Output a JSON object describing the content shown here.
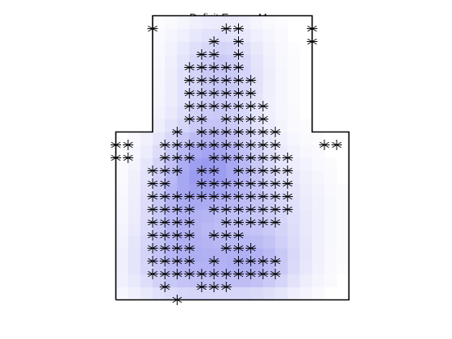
{
  "chart_data": {
    "type": "heatmap",
    "title": "Deficit Excess Map",
    "xlabel": "",
    "ylabel": "",
    "grid": false,
    "boundary": {
      "vertices": [
        [
          1,
          0
        ],
        [
          20,
          0
        ],
        [
          20,
          13
        ],
        [
          17,
          13
        ],
        [
          17,
          22
        ],
        [
          4,
          22
        ],
        [
          4,
          13
        ],
        [
          1,
          13
        ],
        [
          1,
          0
        ]
      ]
    },
    "markers": {
      "symbol": "asterisk",
      "rows": [
        {
          "y": 21,
          "x": [
            4,
            10,
            11,
            17
          ]
        },
        {
          "y": 20,
          "x": [
            9,
            11,
            17
          ]
        },
        {
          "y": 19,
          "x": [
            8,
            9,
            11
          ]
        },
        {
          "y": 18,
          "x": [
            7,
            8,
            9,
            10,
            11
          ]
        },
        {
          "y": 17,
          "x": [
            7,
            8,
            9,
            10,
            11,
            12
          ]
        },
        {
          "y": 16,
          "x": [
            7,
            8,
            9,
            10,
            11,
            12
          ]
        },
        {
          "y": 15,
          "x": [
            7,
            8,
            9,
            10,
            11,
            12,
            13
          ]
        },
        {
          "y": 14,
          "x": [
            7,
            8,
            10,
            11,
            12,
            13
          ]
        },
        {
          "y": 13,
          "x": [
            6,
            8,
            9,
            10,
            11,
            12,
            13,
            14
          ]
        },
        {
          "y": 12,
          "x": [
            1,
            2,
            5,
            6,
            7,
            8,
            9,
            10,
            11,
            12,
            13,
            14,
            18,
            19
          ]
        },
        {
          "y": 11,
          "x": [
            1,
            2,
            5,
            6,
            7,
            9,
            10,
            11,
            12,
            13,
            14,
            15
          ]
        },
        {
          "y": 10,
          "x": [
            4,
            5,
            6,
            8,
            9,
            11,
            12,
            13,
            14,
            15
          ]
        },
        {
          "y": 9,
          "x": [
            4,
            5,
            8,
            9,
            10,
            11,
            12,
            13,
            14,
            15
          ]
        },
        {
          "y": 8,
          "x": [
            4,
            5,
            6,
            7,
            8,
            9,
            10,
            11,
            12,
            13,
            14,
            15
          ]
        },
        {
          "y": 7,
          "x": [
            4,
            5,
            6,
            7,
            9,
            10,
            11,
            12,
            13,
            14,
            15
          ]
        },
        {
          "y": 6,
          "x": [
            4,
            5,
            6,
            7,
            10,
            11,
            12,
            13,
            14
          ]
        },
        {
          "y": 5,
          "x": [
            4,
            5,
            6,
            7,
            9,
            10,
            11
          ]
        },
        {
          "y": 4,
          "x": [
            4,
            5,
            6,
            7,
            10,
            11,
            12
          ]
        },
        {
          "y": 3,
          "x": [
            4,
            5,
            6,
            7,
            9,
            11,
            12,
            13,
            14
          ]
        },
        {
          "y": 2,
          "x": [
            4,
            5,
            6,
            7,
            8,
            9,
            10,
            11,
            12,
            13,
            14
          ]
        },
        {
          "y": 1,
          "x": [
            5,
            8,
            9,
            10
          ]
        },
        {
          "y": 0,
          "x": [
            6
          ]
        }
      ]
    },
    "intensity": {
      "color_low": "#ffffff",
      "color_high": "#9a9af0",
      "peaks": [
        {
          "x": 9.5,
          "y": 17.5,
          "sx": 2.6,
          "sy": 2.8,
          "amp": 0.55
        },
        {
          "x": 9,
          "y": 10.5,
          "sx": 2.5,
          "sy": 2.4,
          "amp": 0.72
        },
        {
          "x": 6,
          "y": 7,
          "sx": 2.2,
          "sy": 3.5,
          "amp": 0.55
        },
        {
          "x": 12.5,
          "y": 6.5,
          "sx": 3.2,
          "sy": 3.5,
          "amp": 0.45
        },
        {
          "x": 7,
          "y": 2.5,
          "sx": 3.5,
          "sy": 2.0,
          "amp": 0.45
        },
        {
          "x": 12.5,
          "y": 2.5,
          "sx": 2.5,
          "sy": 1.6,
          "amp": 0.4
        }
      ]
    },
    "colors": {
      "boundary": "#000000",
      "marker": "#000000",
      "title": "#1a1a1a"
    }
  }
}
